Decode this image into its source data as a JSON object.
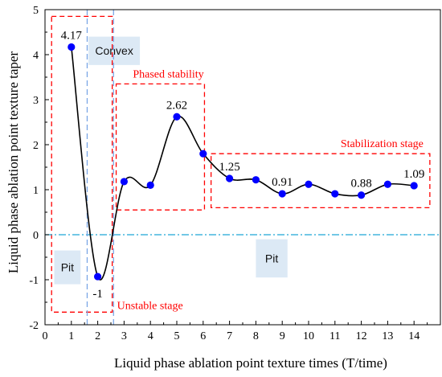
{
  "chart_data": {
    "type": "line",
    "title": "",
    "xlabel": "Liquid phase ablation point texture times (T/time)",
    "ylabel": "Liquid phase ablation point texture taper",
    "xlim": [
      0,
      15
    ],
    "ylim": [
      -2,
      5
    ],
    "x_ticks": [
      "0",
      "1",
      "2",
      "3",
      "4",
      "5",
      "6",
      "7",
      "8",
      "9",
      "10",
      "11",
      "12",
      "13",
      "14"
    ],
    "y_ticks": [
      "-2",
      "-1",
      "0",
      "1",
      "2",
      "3",
      "4",
      "5"
    ],
    "grid": false,
    "series": [
      {
        "marker_color": "#0000ff",
        "line_color": "#000000",
        "points": [
          {
            "x": 1,
            "y": 4.17
          },
          {
            "x": 2,
            "y": -0.93
          },
          {
            "x": 3,
            "y": 1.18
          },
          {
            "x": 4,
            "y": 1.1
          },
          {
            "x": 5,
            "y": 2.62
          },
          {
            "x": 6,
            "y": 1.8
          },
          {
            "x": 7,
            "y": 1.25
          },
          {
            "x": 8,
            "y": 1.22
          },
          {
            "x": 9,
            "y": 0.91
          },
          {
            "x": 10,
            "y": 1.12
          },
          {
            "x": 11,
            "y": 0.91
          },
          {
            "x": 12,
            "y": 0.88
          },
          {
            "x": 13,
            "y": 1.12
          },
          {
            "x": 14,
            "y": 1.09
          }
        ]
      }
    ],
    "data_labels": [
      {
        "text": "4.17",
        "x": 1,
        "y": 4.17,
        "pos": "above"
      },
      {
        "text": "-1",
        "x": 2,
        "y": -0.93,
        "pos": "below"
      },
      {
        "text": "2.62",
        "x": 5,
        "y": 2.62,
        "pos": "above"
      },
      {
        "text": "1.25",
        "x": 7,
        "y": 1.25,
        "pos": "above"
      },
      {
        "text": "0.91",
        "x": 9,
        "y": 0.91,
        "pos": "above"
      },
      {
        "text": "0.88",
        "x": 12,
        "y": 0.88,
        "pos": "above"
      },
      {
        "text": "1.09",
        "x": 14,
        "y": 1.09,
        "pos": "above"
      }
    ],
    "reference_lines": [
      {
        "orientation": "horizontal",
        "value": 0,
        "color": "#1fa8d6",
        "style": "dash-dot"
      },
      {
        "orientation": "vertical",
        "value": 1.6,
        "color": "#7aa6e6",
        "style": "dashed"
      },
      {
        "orientation": "vertical",
        "value": 2.6,
        "color": "#7aa6e6",
        "style": "dashed"
      }
    ],
    "stage_boxes": [
      {
        "name": "unstable-stage",
        "label": "Unstable stage",
        "x_range": [
          0.25,
          2.55
        ],
        "y_range": [
          -1.72,
          4.85
        ],
        "label_pos": "bottom-right",
        "color": "#ff0000"
      },
      {
        "name": "phased-stability",
        "label": "Phased stability",
        "x_range": [
          2.7,
          6.05
        ],
        "y_range": [
          0.55,
          3.35
        ],
        "label_pos": "top",
        "color": "#ff0000"
      },
      {
        "name": "stabilization-stage",
        "label": "Stabilization stage",
        "x_range": [
          6.3,
          14.6
        ],
        "y_range": [
          0.6,
          1.8
        ],
        "label_pos": "top-right",
        "color": "#ff0000"
      }
    ],
    "region_tags": [
      {
        "name": "convex",
        "label": "Convex",
        "x_range": [
          1.65,
          3.6
        ],
        "y_range": [
          3.77,
          4.4
        ]
      },
      {
        "name": "pit-left",
        "label": "Pit",
        "x_range": [
          0.35,
          1.35
        ],
        "y_range": [
          -1.1,
          -0.35
        ]
      },
      {
        "name": "pit-middle",
        "label": "Pit",
        "x_range": [
          8.0,
          9.2
        ],
        "y_range": [
          -0.95,
          -0.1
        ]
      }
    ],
    "colors": {
      "annotation": "#ff0000",
      "marker": "#0000ff",
      "tag_fill": "#dce9f5",
      "zero_line": "#1fa8d6",
      "divider": "#7aa6e6"
    }
  }
}
